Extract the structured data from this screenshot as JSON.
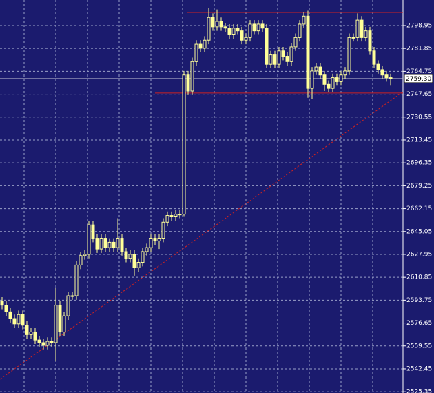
{
  "chart_data": {
    "type": "candlestick",
    "series": [
      {
        "color": "#ffff99",
        "open": [
          2593,
          2590,
          2585,
          2580,
          2576,
          2583,
          2575,
          2568,
          2570,
          2564,
          2562,
          2560,
          2563,
          2562,
          2590,
          2570,
          2582,
          2597,
          2597,
          2620,
          2627,
          2628,
          2650,
          2640,
          2632,
          2640,
          2633,
          2637,
          2633,
          2640,
          2630,
          2625,
          2628,
          2618,
          2622,
          2630,
          2633,
          2640,
          2638,
          2640,
          2652,
          2657,
          2656,
          2658,
          2658,
          2762,
          2750,
          2772,
          2785,
          2782,
          2788,
          2805,
          2798,
          2802,
          2798,
          2797,
          2792,
          2797,
          2795,
          2788,
          2790,
          2800,
          2795,
          2800,
          2797,
          2770,
          2777,
          2770,
          2780,
          2776,
          2772,
          2783,
          2790,
          2800,
          2806,
          2752,
          2765,
          2768,
          2762,
          2755,
          2752,
          2760,
          2757,
          2762,
          2765,
          2790,
          2790,
          2803,
          2790,
          2795,
          2780,
          2770,
          2766,
          2762,
          2760
        ],
        "high": [
          2596,
          2593,
          2588,
          2583,
          2586,
          2586,
          2578,
          2573,
          2573,
          2567,
          2565,
          2566,
          2566,
          2603,
          2593,
          2585,
          2600,
          2600,
          2623,
          2630,
          2631,
          2653,
          2653,
          2643,
          2643,
          2643,
          2640,
          2640,
          2655,
          2643,
          2633,
          2631,
          2631,
          2625,
          2633,
          2636,
          2643,
          2643,
          2643,
          2655,
          2660,
          2660,
          2661,
          2661,
          2765,
          2765,
          2775,
          2788,
          2788,
          2791,
          2812,
          2808,
          2811,
          2805,
          2801,
          2800,
          2800,
          2800,
          2798,
          2793,
          2803,
          2803,
          2803,
          2803,
          2800,
          2780,
          2780,
          2783,
          2783,
          2779,
          2786,
          2793,
          2803,
          2809,
          2810,
          2768,
          2771,
          2771,
          2765,
          2758,
          2763,
          2763,
          2765,
          2768,
          2793,
          2793,
          2808,
          2806,
          2798,
          2798,
          2783,
          2773,
          2769,
          2765,
          2763
        ],
        "low": [
          2587,
          2582,
          2577,
          2573,
          2573,
          2572,
          2565,
          2565,
          2561,
          2559,
          2557,
          2557,
          2559,
          2548,
          2567,
          2567,
          2579,
          2594,
          2594,
          2617,
          2624,
          2625,
          2637,
          2629,
          2629,
          2630,
          2630,
          2630,
          2630,
          2627,
          2622,
          2622,
          2612,
          2615,
          2619,
          2627,
          2630,
          2635,
          2632,
          2637,
          2649,
          2653,
          2653,
          2655,
          2656,
          2747,
          2747,
          2769,
          2779,
          2779,
          2785,
          2795,
          2795,
          2795,
          2794,
          2789,
          2789,
          2792,
          2785,
          2785,
          2787,
          2792,
          2792,
          2794,
          2767,
          2767,
          2767,
          2767,
          2773,
          2769,
          2769,
          2780,
          2787,
          2797,
          2745,
          2744,
          2762,
          2759,
          2750,
          2749,
          2749,
          2754,
          2754,
          2759,
          2762,
          2787,
          2787,
          2787,
          2787,
          2777,
          2767,
          2763,
          2759,
          2757,
          2754
        ],
        "close": [
          2590,
          2585,
          2580,
          2576,
          2583,
          2575,
          2568,
          2570,
          2564,
          2562,
          2560,
          2563,
          2562,
          2590,
          2570,
          2582,
          2597,
          2597,
          2620,
          2627,
          2628,
          2650,
          2640,
          2632,
          2640,
          2633,
          2637,
          2633,
          2640,
          2630,
          2625,
          2628,
          2618,
          2622,
          2630,
          2633,
          2640,
          2638,
          2640,
          2652,
          2657,
          2656,
          2658,
          2658,
          2762,
          2750,
          2772,
          2785,
          2782,
          2788,
          2805,
          2798,
          2802,
          2798,
          2797,
          2792,
          2797,
          2795,
          2788,
          2790,
          2800,
          2795,
          2800,
          2797,
          2770,
          2777,
          2770,
          2780,
          2776,
          2772,
          2783,
          2790,
          2800,
          2806,
          2752,
          2765,
          2768,
          2762,
          2755,
          2752,
          2760,
          2757,
          2762,
          2765,
          2790,
          2790,
          2803,
          2790,
          2795,
          2780,
          2770,
          2766,
          2762,
          2760,
          2759.3
        ]
      }
    ],
    "ylim": [
      2524.4,
      2818.0
    ],
    "yticks": [
      2798.95,
      2781.85,
      2764.75,
      2747.65,
      2730.55,
      2713.45,
      2696.35,
      2679.25,
      2662.15,
      2645.05,
      2627.95,
      2610.85,
      2593.75,
      2576.65,
      2559.55,
      2542.45,
      2525.35
    ],
    "current_price": {
      "value": 2759.3,
      "label": "2759.30"
    },
    "hlines": [
      2808.7,
      2748.5
    ],
    "hline_color": "#cc2222",
    "trendline": [
      2534.7,
      2749.5
    ],
    "grid": true,
    "background": "#1b1b6e"
  }
}
